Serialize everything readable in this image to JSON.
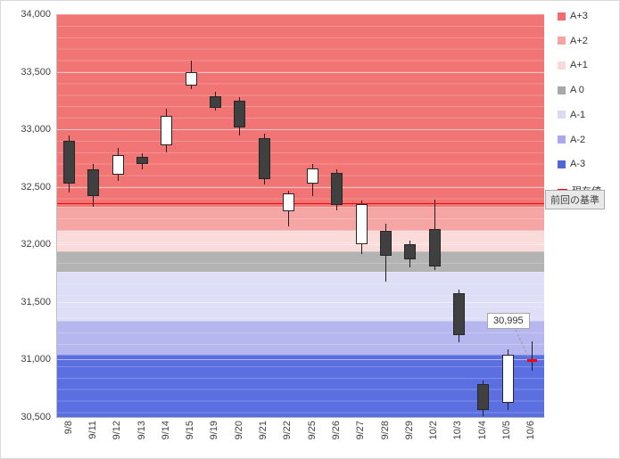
{
  "chart_data": {
    "type": "candlestick",
    "title": "",
    "y_axis": {
      "min": 30500,
      "max": 34000,
      "step": 500,
      "tick_labels": [
        "34,000",
        "33,500",
        "33,000",
        "32,500",
        "32,000",
        "31,500",
        "31,000",
        "30,500"
      ]
    },
    "categories": [
      "9/8",
      "9/11",
      "9/12",
      "9/13",
      "9/14",
      "9/15",
      "9/19",
      "9/20",
      "9/21",
      "9/22",
      "9/25",
      "9/26",
      "9/27",
      "9/28",
      "9/29",
      "10/2",
      "10/3",
      "10/4",
      "10/5",
      "10/6"
    ],
    "candles": [
      {
        "date": "9/8",
        "open": 32900,
        "high": 32950,
        "low": 32450,
        "close": 32530
      },
      {
        "date": "9/11",
        "open": 32650,
        "high": 32700,
        "low": 32330,
        "close": 32420
      },
      {
        "date": "9/12",
        "open": 32610,
        "high": 32840,
        "low": 32550,
        "close": 32780
      },
      {
        "date": "9/13",
        "open": 32760,
        "high": 32790,
        "low": 32650,
        "close": 32700
      },
      {
        "date": "9/14",
        "open": 32860,
        "high": 33180,
        "low": 32800,
        "close": 33120
      },
      {
        "date": "9/15",
        "open": 33380,
        "high": 33600,
        "low": 33350,
        "close": 33500
      },
      {
        "date": "9/19",
        "open": 33290,
        "high": 33330,
        "low": 33160,
        "close": 33190
      },
      {
        "date": "9/20",
        "open": 33250,
        "high": 33280,
        "low": 32950,
        "close": 33020
      },
      {
        "date": "9/21",
        "open": 32920,
        "high": 32960,
        "low": 32520,
        "close": 32570
      },
      {
        "date": "9/22",
        "open": 32290,
        "high": 32470,
        "low": 32160,
        "close": 32440
      },
      {
        "date": "9/25",
        "open": 32530,
        "high": 32700,
        "low": 32420,
        "close": 32660
      },
      {
        "date": "9/26",
        "open": 32620,
        "high": 32650,
        "low": 32300,
        "close": 32340
      },
      {
        "date": "9/27",
        "open": 32000,
        "high": 32380,
        "low": 31920,
        "close": 32350
      },
      {
        "date": "9/28",
        "open": 32120,
        "high": 32180,
        "low": 31680,
        "close": 31900
      },
      {
        "date": "9/29",
        "open": 32000,
        "high": 32030,
        "low": 31800,
        "close": 31870
      },
      {
        "date": "10/2",
        "open": 32130,
        "high": 32390,
        "low": 31780,
        "close": 31810
      },
      {
        "date": "10/3",
        "open": 31580,
        "high": 31610,
        "low": 31150,
        "close": 31210
      },
      {
        "date": "10/4",
        "open": 30790,
        "high": 30820,
        "low": 30510,
        "close": 30560
      },
      {
        "date": "10/5",
        "open": 30620,
        "high": 31090,
        "low": 30560,
        "close": 31040
      },
      {
        "date": "10/6",
        "high": 31160,
        "low": 30900,
        "current": true
      }
    ],
    "current_value": 30995,
    "current_label": "30,995",
    "baseline_value": 32360,
    "baseline_button": "前回の基準",
    "bands": [
      {
        "label": "A+3",
        "from": 32330,
        "to": 34000,
        "color": "#f17575"
      },
      {
        "label": "A+2",
        "from": 32120,
        "to": 32330,
        "color": "#f6a5a5"
      },
      {
        "label": "A+1",
        "from": 31940,
        "to": 32120,
        "color": "#fbdada"
      },
      {
        "label": "A 0",
        "from": 31760,
        "to": 31940,
        "color": "#b3b3b3"
      },
      {
        "label": "A-1",
        "from": 31340,
        "to": 31760,
        "color": "#dedef7"
      },
      {
        "label": "A-2",
        "from": 31040,
        "to": 31340,
        "color": "#b7b7f0"
      },
      {
        "label": "A-3",
        "from": 30500,
        "to": 31040,
        "color": "#5c6fe0"
      }
    ],
    "legend": [
      {
        "label": "A+3",
        "type": "swatch",
        "color": "#f26c6c"
      },
      {
        "label": "A+2",
        "type": "swatch",
        "color": "#f7a3a3"
      },
      {
        "label": "A+1",
        "type": "swatch",
        "color": "#fbd9d9"
      },
      {
        "label": "A 0",
        "type": "swatch",
        "color": "#a8a8a8"
      },
      {
        "label": "A-1",
        "type": "swatch",
        "color": "#dadaf4"
      },
      {
        "label": "A-2",
        "type": "swatch",
        "color": "#a9a9ec"
      },
      {
        "label": "A-3",
        "type": "swatch",
        "color": "#5166d8"
      },
      {
        "label": "現在値",
        "type": "dash",
        "color": "#ff0000"
      }
    ]
  }
}
